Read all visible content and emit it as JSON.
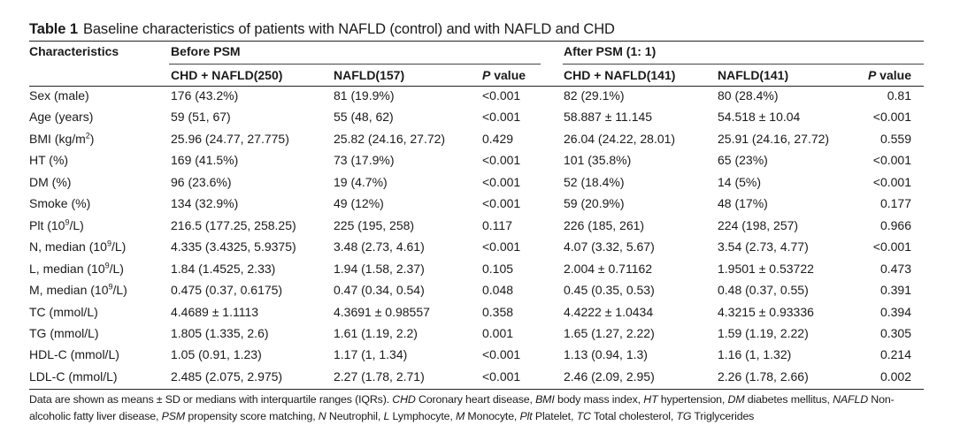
{
  "table": {
    "label": "Table 1",
    "caption": "Baseline characteristics of patients with NAFLD (control) and with NAFLD and CHD",
    "header": {
      "characteristics": "Characteristics",
      "group_before": "Before PSM",
      "group_after": "After PSM (1: 1)",
      "col_chd_before": "CHD + NAFLD(250)",
      "col_nafld_before": "NAFLD(157)",
      "col_chd_after": "CHD + NAFLD(141)",
      "col_nafld_after": "NAFLD(141)",
      "p_italic": "P",
      "p_rest": " value"
    },
    "rows": [
      {
        "name": "Sex (male)",
        "c1": "176 (43.2%)",
        "c2": "81 (19.9%)",
        "p1": "<0.001",
        "c3": "82 (29.1%)",
        "c4": "80 (28.4%)",
        "p2": "0.81"
      },
      {
        "name": "Age (years)",
        "c1": "59 (51, 67)",
        "c2": "55 (48, 62)",
        "p1": "<0.001",
        "c3": "58.887 ± 11.145",
        "c4": "54.518 ± 10.04",
        "p2": "<0.001"
      },
      {
        "name": "BMI (kg/m",
        "sup": "2",
        "name_after": ")",
        "c1": "25.96 (24.77, 27.775)",
        "c2": "25.82 (24.16, 27.72)",
        "p1": "0.429",
        "c3": "26.04 (24.22, 28.01)",
        "c4": "25.91 (24.16, 27.72)",
        "p2": "0.559"
      },
      {
        "name": "HT (%)",
        "c1": "169 (41.5%)",
        "c2": "73 (17.9%)",
        "p1": "<0.001",
        "c3": "101 (35.8%)",
        "c4": "65 (23%)",
        "p2": "<0.001"
      },
      {
        "name": "DM (%)",
        "c1": "96 (23.6%)",
        "c2": "19 (4.7%)",
        "p1": "<0.001",
        "c3": "52 (18.4%)",
        "c4": "14 (5%)",
        "p2": "<0.001"
      },
      {
        "name": "Smoke (%)",
        "c1": "134 (32.9%)",
        "c2": "49 (12%)",
        "p1": "<0.001",
        "c3": "59 (20.9%)",
        "c4": "48 (17%)",
        "p2": "0.177"
      },
      {
        "name": "Plt (10",
        "sup": "9",
        "name_after": "/L)",
        "c1": "216.5 (177.25, 258.25)",
        "c2": "225 (195, 258)",
        "p1": "0.117",
        "c3": "226 (185, 261)",
        "c4": "224 (198, 257)",
        "p2": "0.966"
      },
      {
        "name": "N, median (10",
        "sup": "9",
        "name_after": "/L)",
        "c1": "4.335 (3.4325, 5.9375)",
        "c2": "3.48 (2.73, 4.61)",
        "p1": "<0.001",
        "c3": "4.07 (3.32, 5.67)",
        "c4": "3.54 (2.73, 4.77)",
        "p2": "<0.001"
      },
      {
        "name": "L, median (10",
        "sup": "9",
        "name_after": "/L)",
        "c1": "1.84 (1.4525, 2.33)",
        "c2": "1.94 (1.58, 2.37)",
        "p1": "0.105",
        "c3": "2.004 ± 0.71162",
        "c4": "1.9501 ± 0.53722",
        "p2": "0.473"
      },
      {
        "name": "M, median (10",
        "sup": "9",
        "name_after": "/L)",
        "c1": "0.475 (0.37, 0.6175)",
        "c2": "0.47 (0.34, 0.54)",
        "p1": "0.048",
        "c3": "0.45 (0.35, 0.53)",
        "c4": "0.48 (0.37, 0.55)",
        "p2": "0.391"
      },
      {
        "name": "TC (mmol/L)",
        "c1": "4.4689 ± 1.1113",
        "c2": "4.3691 ± 0.98557",
        "p1": "0.358",
        "c3": "4.4222 ± 1.0434",
        "c4": "4.3215 ± 0.93336",
        "p2": "0.394"
      },
      {
        "name": "TG (mmol/L)",
        "c1": "1.805 (1.335, 2.6)",
        "c2": "1.61 (1.19, 2.2)",
        "p1": "0.001",
        "c3": "1.65 (1.27, 2.22)",
        "c4": "1.59 (1.19, 2.22)",
        "p2": "0.305"
      },
      {
        "name": "HDL-C (mmol/L)",
        "c1": "1.05 (0.91, 1.23)",
        "c2": "1.17 (1, 1.34)",
        "p1": "<0.001",
        "c3": "1.13 (0.94, 1.3)",
        "c4": "1.16 (1, 1.32)",
        "p2": "0.214"
      },
      {
        "name": "LDL-C (mmol/L)",
        "c1": "2.485 (2.075, 2.975)",
        "c2": "2.27 (1.78, 2.71)",
        "p1": "<0.001",
        "c3": "2.46 (2.09, 2.95)",
        "c4": "2.26 (1.78, 2.66)",
        "p2": "0.002"
      }
    ],
    "footnote": [
      {
        "t": "Data are shown as means ± SD or medians with interquartile ranges (IQRs). "
      },
      {
        "t": "CHD",
        "i": true
      },
      {
        "t": " Coronary heart disease, "
      },
      {
        "t": "BMI",
        "i": true
      },
      {
        "t": " body mass index, "
      },
      {
        "t": "HT",
        "i": true
      },
      {
        "t": " hypertension, "
      },
      {
        "t": "DM",
        "i": true
      },
      {
        "t": " diabetes mellitus, "
      },
      {
        "t": "NAFLD",
        "i": true
      },
      {
        "t": " Non-alcoholic fatty liver disease, "
      },
      {
        "t": "PSM",
        "i": true
      },
      {
        "t": " propensity score matching, "
      },
      {
        "t": "N",
        "i": true
      },
      {
        "t": " Neutrophil, "
      },
      {
        "t": "L",
        "i": true
      },
      {
        "t": " Lymphocyte, "
      },
      {
        "t": "M",
        "i": true
      },
      {
        "t": " Monocyte, "
      },
      {
        "t": "Plt",
        "i": true
      },
      {
        "t": " Platelet, "
      },
      {
        "t": "TC",
        "i": true
      },
      {
        "t": " Total cholesterol, "
      },
      {
        "t": "TG",
        "i": true
      },
      {
        "t": " Triglycerides"
      }
    ]
  }
}
